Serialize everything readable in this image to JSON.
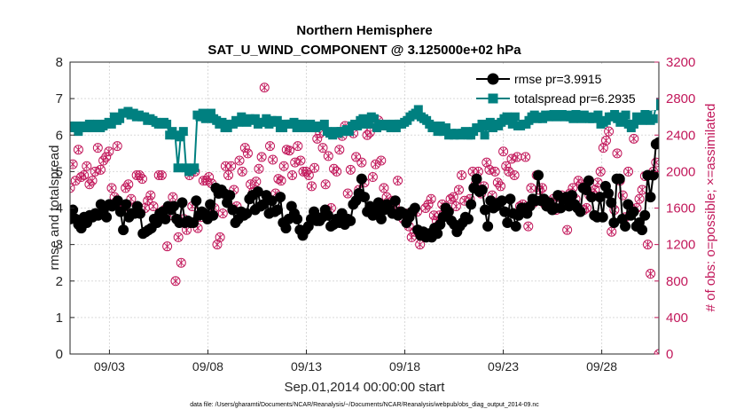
{
  "chart_data": {
    "type": "line",
    "title_line1": "Northern Hemisphere",
    "title_line2": "SAT_U_WIND_COMPONENT @ 3.125000e+02 hPa",
    "xlabel": "Sep.01,2014 00:00:00 start",
    "ylabel_left": "rmse and totalspread",
    "ylabel_right": "# of obs: o=possible; ×=assimilated",
    "footnote": "data file: /Users/gharamti/Documents/NCAR/Reanalysis/~/Documents/NCAR/Reanalysis/webpub/obs_diag_output_2014-09.nc",
    "x_range": [
      1,
      30.9
    ],
    "x_ticks": [
      3,
      8,
      13,
      18,
      23,
      28
    ],
    "x_tick_labels": [
      "09/03",
      "09/08",
      "09/13",
      "09/18",
      "09/23",
      "09/28"
    ],
    "y_left_range": [
      0,
      8
    ],
    "y_left_ticks": [
      "0",
      "1",
      "2",
      "3",
      "4",
      "5",
      "6",
      "7",
      "8"
    ],
    "y_right_range": [
      0,
      3200
    ],
    "y_right_ticks": [
      "0",
      "400",
      "800",
      "1200",
      "1600",
      "2000",
      "2400",
      "2800",
      "3200"
    ],
    "grid": true,
    "legend_position": "top-right",
    "colors": {
      "rmse": "#000000",
      "totalspread": "#008080",
      "obs": "#c2185b"
    },
    "series": [
      {
        "name": "rmse pr=3.9915",
        "axis": "left",
        "values": [
          3.7,
          3.95,
          3.7,
          3.55,
          3.45,
          3.75,
          3.6,
          3.8,
          3.75,
          3.85,
          3.8,
          4.1,
          4.0,
          3.75,
          4.1,
          4.05,
          4.1,
          4.2,
          3.9,
          3.4,
          4.1,
          3.75,
          3.85,
          3.85,
          4.05,
          3.85,
          3.3,
          3.35,
          3.4,
          3.45,
          3.7,
          3.6,
          3.85,
          3.9,
          3.7,
          4.05,
          3.95,
          4.05,
          3.7,
          3.6,
          4.15,
          3.6,
          3.65,
          3.6,
          3.6,
          4.2,
          3.8,
          3.9,
          3.85,
          3.7,
          4.1,
          3.8,
          4.55,
          4.4,
          4.5,
          4.4,
          4.15,
          4.35,
          3.95,
          3.6,
          3.7,
          3.9,
          3.8,
          3.85,
          4.25,
          4.35,
          3.95,
          4.45,
          4.05,
          4.1,
          4.35,
          3.85,
          4.2,
          3.9,
          3.95,
          4.3,
          3.6,
          3.45,
          3.7,
          4.05,
          3.85,
          3.7,
          3.4,
          3.25,
          3.4,
          3.5,
          3.7,
          3.9,
          3.65,
          3.65,
          3.75,
          3.95,
          3.8,
          3.5,
          3.55,
          3.7,
          3.6,
          3.85,
          3.55,
          3.7,
          3.65,
          4.1,
          4.2,
          4.4,
          4.8,
          4.3,
          3.9,
          4.05,
          3.8,
          3.9,
          4.15,
          3.7,
          3.95,
          4.1,
          3.95,
          3.85,
          4.2,
          3.8,
          3.9,
          3.85,
          3.6,
          3.75,
          3.9,
          4.0,
          3.4,
          3.25,
          3.35,
          3.2,
          3.3,
          3.2,
          3.45,
          3.3,
          3.55,
          3.75,
          4.0,
          3.9,
          3.65,
          3.55,
          3.35,
          3.5,
          3.6,
          3.75,
          3.7,
          4.1,
          4.55,
          4.8,
          4.45,
          4.5,
          3.95,
          3.5,
          4.2,
          4.0,
          4.05,
          4.15,
          4.2,
          3.9,
          3.6,
          4.25,
          3.85,
          3.5,
          3.8,
          4.0,
          4.0,
          3.85,
          4.05,
          4.25,
          4.2,
          4.9,
          4.2,
          4.25,
          4.05,
          4.15,
          3.95,
          4.0,
          4.35,
          4.0,
          4.25,
          4.3,
          4.05,
          4.35,
          4.1,
          4.0,
          3.9,
          4.55,
          4.5,
          4.75,
          4.3,
          3.8,
          3.75,
          4.3,
          3.75,
          4.6,
          4.4,
          4.15,
          3.6,
          4.8,
          4.8,
          3.7,
          3.5,
          4.1,
          3.8,
          3.9,
          3.5,
          3.6,
          3.4,
          3.8,
          4.9,
          4.3,
          4.9,
          5.75,
          5.8
        ]
      },
      {
        "name": "totalspread pr=6.2935",
        "axis": "left",
        "values": [
          6.25,
          6.2,
          6.25,
          6.1,
          6.2,
          6.25,
          6.2,
          6.3,
          6.2,
          6.25,
          6.3,
          6.2,
          6.25,
          6.3,
          6.35,
          6.3,
          6.5,
          6.4,
          6.45,
          6.6,
          6.6,
          6.65,
          6.55,
          6.6,
          6.5,
          6.55,
          6.5,
          6.5,
          6.4,
          6.45,
          6.4,
          6.35,
          6.3,
          6.3,
          6.35,
          6.3,
          6.0,
          6.1,
          6.0,
          5.1,
          5.95,
          6.1,
          5.1,
          5.0,
          5.05,
          5.1,
          6.55,
          6.5,
          6.6,
          6.45,
          6.5,
          6.6,
          6.45,
          6.4,
          6.3,
          6.35,
          6.2,
          6.2,
          6.3,
          6.3,
          6.4,
          6.35,
          6.5,
          6.4,
          6.35,
          6.45,
          6.4,
          6.45,
          6.3,
          6.35,
          6.35,
          6.45,
          6.3,
          6.4,
          6.35,
          6.4,
          6.2,
          6.2,
          6.3,
          6.3,
          6.3,
          6.35,
          6.2,
          6.3,
          6.3,
          6.2,
          6.25,
          6.3,
          6.2,
          6.2,
          6.25,
          6.25,
          6.3,
          6.1,
          6.05,
          6.0,
          6.1,
          6.05,
          6.1,
          6.1,
          6.15,
          6.1,
          6.25,
          6.3,
          6.25,
          6.4,
          6.45,
          6.3,
          6.3,
          6.5,
          6.45,
          6.2,
          6.3,
          6.25,
          6.3,
          6.25,
          6.2,
          6.3,
          6.2,
          6.3,
          6.3,
          6.35,
          6.4,
          6.5,
          6.55,
          6.6,
          6.7,
          6.5,
          6.45,
          6.4,
          6.3,
          6.2,
          6.25,
          6.1,
          6.25,
          6.1,
          6.2,
          6.0,
          6.05,
          6.0,
          6.05,
          6.0,
          6.05,
          6.1,
          6.0,
          6.0,
          6.1,
          6.2,
          6.2,
          6.3,
          6.0,
          6.25,
          6.35,
          6.2,
          6.3,
          6.25,
          6.35,
          6.45,
          6.5,
          6.4,
          6.3,
          6.5,
          6.25,
          6.25,
          6.3,
          6.3,
          6.4,
          6.5,
          6.55,
          6.45,
          6.5,
          6.45,
          6.55,
          6.5,
          6.55,
          6.6,
          6.5,
          6.6,
          6.6,
          6.5,
          6.55,
          6.5,
          6.45,
          6.6,
          6.5,
          6.45,
          6.55,
          6.5,
          6.45,
          6.45,
          6.5,
          6.55,
          6.3,
          6.35,
          6.4,
          6.5,
          6.5,
          6.6,
          6.45,
          6.35,
          6.5,
          6.55,
          6.3,
          6.2,
          6.3,
          6.5,
          6.45,
          6.4,
          6.6,
          6.55,
          6.4,
          6.45,
          6.8,
          6.9
        ]
      },
      {
        "name": "# of obs possible",
        "axis": "right",
        "values": [
          1820,
          2080,
          1900,
          2240,
          1940,
          1960,
          2060,
          1860,
          1900,
          2000,
          2260,
          2020,
          2120,
          2160,
          2220,
          1820,
          1720,
          2280,
          1640,
          1600,
          1820,
          1860,
          1700,
          1600,
          1960,
          1960,
          1920,
          1600,
          1680,
          1740,
          1620,
          1460,
          1960,
          1960,
          1580,
          1180,
          1520,
          1720,
          800,
          1280,
          1000,
          1480,
          1360,
          1960,
          1620,
          2000,
          1380,
          1500,
          1900,
          1900,
          1940,
          1870,
          1600,
          1200,
          1280,
          1540,
          2060,
          1960,
          2060,
          1800,
          1620,
          2120,
          2000,
          2260,
          2200,
          1860,
          1780,
          1890,
          2030,
          2160,
          2920,
          2540,
          2280,
          2130,
          1760,
          1920,
          1900,
          2060,
          2240,
          2230,
          1960,
          2100,
          2280,
          2120,
          2000,
          2000,
          1960,
          1840,
          2040,
          2360,
          2420,
          2260,
          1860,
          2170,
          1600,
          2030,
          2000,
          2240,
          2390,
          2500,
          1760,
          2020,
          2420,
          2160,
          1800,
          2100,
          1880,
          2400,
          2430,
          1940,
          2080,
          2560,
          2120,
          1820,
          1720,
          1600,
          1680,
          1640,
          1900,
          1560,
          1480,
          1540,
          1400,
          1280,
          1340,
          1560,
          1200,
          1300,
          1600,
          1640,
          1700,
          1520,
          1460,
          1520,
          1640,
          1560,
          1520,
          1700,
          1720,
          1620,
          1800,
          1960,
          1680,
          1480,
          1700,
          2000,
          1860,
          2000,
          1760,
          1840,
          2100,
          2020,
          1740,
          2000,
          1880,
          1840,
          2220,
          2060,
          2000,
          2140,
          1960,
          2160,
          1620,
          1640,
          2160,
          1400,
          1820,
          1660,
          1960,
          1800,
          1820,
          1640,
          1620,
          1640,
          1700,
          1580,
          1720,
          1740,
          1720,
          1360,
          1760,
          1820,
          1700,
          1900,
          1860,
          1580,
          1600,
          1740,
          1760,
          1800,
          1880,
          2000,
          2260,
          2340,
          2440,
          1340,
          1580,
          2200,
          1900,
          1740,
          1500,
          2000,
          1600,
          2360,
          1600,
          1700,
          1800,
          1950,
          1200,
          880,
          2000,
          2100,
          0
        ]
      }
    ]
  }
}
